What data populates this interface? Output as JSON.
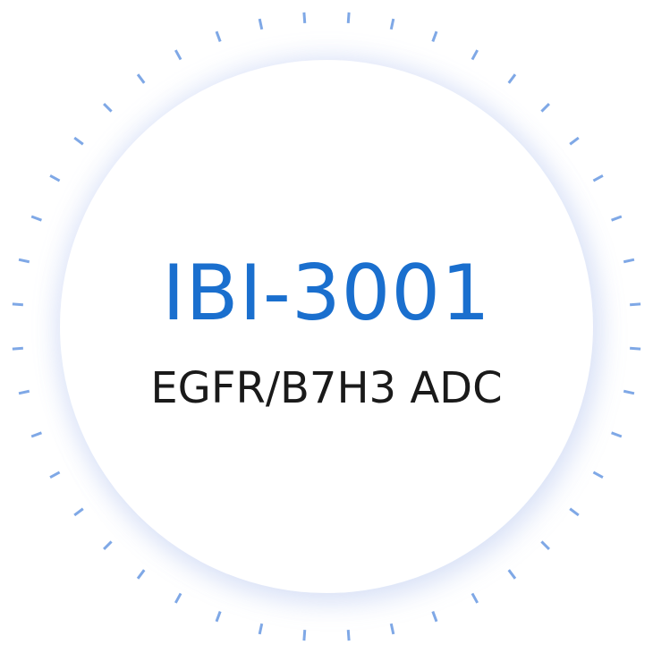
{
  "badge": {
    "title": "IBI-3001",
    "subtitle": "EGFR/B7H3 ADC",
    "colors": {
      "title": "#1a6fce",
      "subtitle": "#1a1a1a",
      "ticks": "#7fa8e6",
      "background": "#ffffff"
    }
  }
}
